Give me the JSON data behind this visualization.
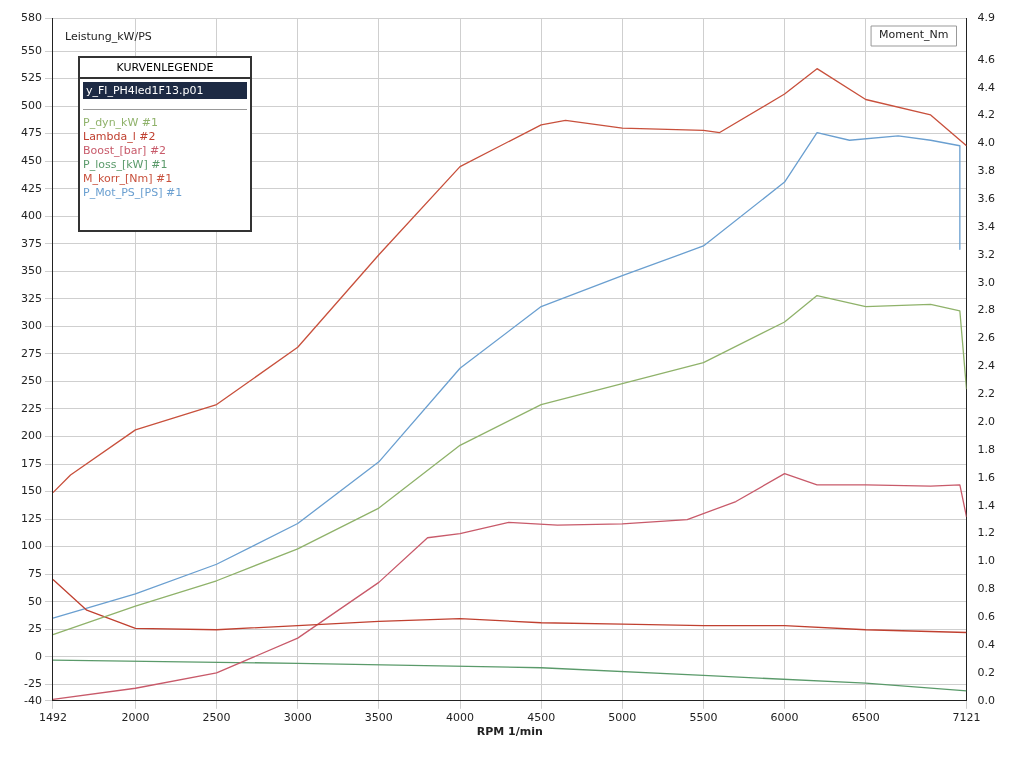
{
  "chart_data": {
    "type": "line",
    "xlabel": "RPM 1/min",
    "ylabel": "Leistung_kW/PS",
    "y2label": "Moment_Nm",
    "legend_title": "KURVENLEGENDE",
    "annotations": [
      "y_Fl_PH4led1F13.p01"
    ],
    "xlim": [
      1492,
      7121
    ],
    "xticks": [
      1492,
      2000,
      2500,
      3000,
      3500,
      4000,
      4500,
      5000,
      5500,
      6000,
      6500,
      7121
    ],
    "ylim": [
      -40,
      580
    ],
    "yticks": [
      -40,
      -25,
      0,
      25,
      50,
      75,
      100,
      125,
      150,
      175,
      200,
      225,
      250,
      275,
      300,
      325,
      350,
      375,
      400,
      425,
      450,
      475,
      500,
      525,
      550,
      580
    ],
    "y2lim": [
      0,
      4.9
    ],
    "y2ticks": [
      {
        "value": 0,
        "label": "0.0"
      },
      {
        "value": 0.2,
        "label": "0.2"
      },
      {
        "value": 0.4,
        "label": "0.4"
      },
      {
        "value": 0.6,
        "label": "0.6"
      },
      {
        "value": 0.8,
        "label": "0.8"
      },
      {
        "value": 1,
        "label": "1.0"
      },
      {
        "value": 1.2,
        "label": "1.2"
      },
      {
        "value": 1.4,
        "label": "1.4"
      },
      {
        "value": 1.6,
        "label": "1.6"
      },
      {
        "value": 1.8,
        "label": "1.8"
      },
      {
        "value": 2,
        "label": "2.0"
      },
      {
        "value": 2.2,
        "label": "2.2"
      },
      {
        "value": 2.4,
        "label": "2.4"
      },
      {
        "value": 2.6,
        "label": "2.6"
      },
      {
        "value": 2.8,
        "label": "2.8"
      },
      {
        "value": 3,
        "label": "3.0"
      },
      {
        "value": 3.2,
        "label": "3.2"
      },
      {
        "value": 3.4,
        "label": "3.4"
      },
      {
        "value": 3.6,
        "label": "3.6"
      },
      {
        "value": 3.8,
        "label": "3.8"
      },
      {
        "value": 4,
        "label": "4.0"
      },
      {
        "value": 4.2,
        "label": "4.2"
      },
      {
        "value": 4.4,
        "label": "4.4"
      },
      {
        "value": 4.6,
        "label": "4.6"
      },
      {
        "value": 4.9,
        "label": "4.9"
      }
    ],
    "grid": true,
    "legend": "top left",
    "marker": "none",
    "line_style": "solid",
    "series": [
      {
        "name": "P_dyn_kW #1",
        "color": "#8fb26a",
        "x": [
          1492,
          2000,
          2500,
          3000,
          3500,
          4000,
          4500,
          5000,
          5500,
          6000,
          6200,
          6500,
          6900,
          7080,
          7121
        ],
        "values": [
          20,
          46,
          69,
          98,
          135,
          192,
          229,
          248,
          267,
          304,
          328,
          318,
          320,
          314,
          243
        ]
      },
      {
        "name": "Lambda_l #2",
        "color": "#c04030",
        "axis": "y2",
        "x": [
          1492,
          1700,
          2000,
          2500,
          3000,
          3500,
          4000,
          4500,
          5000,
          5500,
          6000,
          6500,
          7121
        ],
        "values": [
          0.87,
          0.65,
          0.52,
          0.51,
          0.54,
          0.57,
          0.59,
          0.56,
          0.55,
          0.54,
          0.54,
          0.51,
          0.49
        ]
      },
      {
        "name": "Boost_[bar] #2",
        "color": "#c85a6a",
        "axis": "y2",
        "x": [
          1492,
          2000,
          2500,
          3000,
          3500,
          3800,
          4000,
          4300,
          4600,
          5000,
          5400,
          5700,
          6000,
          6200,
          6500,
          6900,
          7080,
          7121
        ],
        "values": [
          0.01,
          0.09,
          0.2,
          0.45,
          0.85,
          1.17,
          1.2,
          1.28,
          1.26,
          1.27,
          1.3,
          1.43,
          1.63,
          1.55,
          1.55,
          1.54,
          1.55,
          1.32
        ]
      },
      {
        "name": "P_loss_[kW] #1",
        "color": "#5a9a6a",
        "x": [
          1492,
          3000,
          4500,
          5500,
          6500,
          7121
        ],
        "values": [
          -3,
          -6,
          -10,
          -17,
          -24,
          -31
        ]
      },
      {
        "name": "M_korr_[Nm] #1",
        "color": "#c8503c",
        "x": [
          1492,
          1600,
          2000,
          2500,
          3000,
          3500,
          4000,
          4500,
          4650,
          5000,
          5500,
          5600,
          6000,
          6200,
          6500,
          6900,
          7121
        ],
        "values": [
          149,
          165,
          206,
          229,
          281,
          365,
          445,
          483,
          487,
          480,
          478,
          476,
          511,
          534,
          506,
          492,
          464
        ]
      },
      {
        "name": "P_Mot_PS_[PS] #1",
        "color": "#6a9fd0",
        "x": [
          1492,
          2000,
          2500,
          3000,
          3500,
          4000,
          4500,
          5000,
          5500,
          6000,
          6200,
          6400,
          6700,
          6900,
          7080,
          7080
        ],
        "values": [
          35,
          57,
          84,
          121,
          177,
          262,
          318,
          346,
          373,
          431,
          476,
          469,
          473,
          469,
          464,
          370
        ]
      }
    ]
  }
}
